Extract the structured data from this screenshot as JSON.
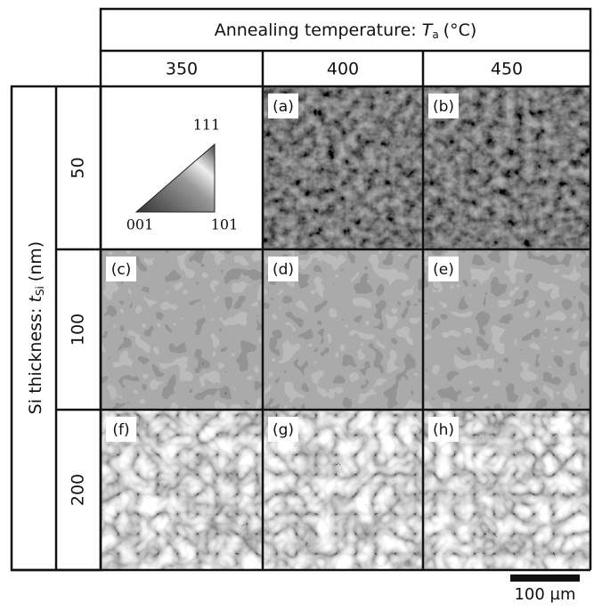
{
  "column_header": {
    "text": "Annealing temperature: ",
    "symbol": "T",
    "subscript": "a",
    "unit": "(°C)"
  },
  "columns": [
    "350",
    "400",
    "450"
  ],
  "row_header": {
    "text": "Si thickness: ",
    "symbol": "t",
    "subscript": "Si",
    "unit": "(nm)"
  },
  "rows": [
    "50",
    "100",
    "200"
  ],
  "panels": [
    "(a)",
    "(b)",
    "(c)",
    "(d)",
    "(e)",
    "(f)",
    "(g)",
    "(h)"
  ],
  "legend": {
    "top": "111",
    "left": "001",
    "right": "101"
  },
  "scale_bar": "100 µm"
}
